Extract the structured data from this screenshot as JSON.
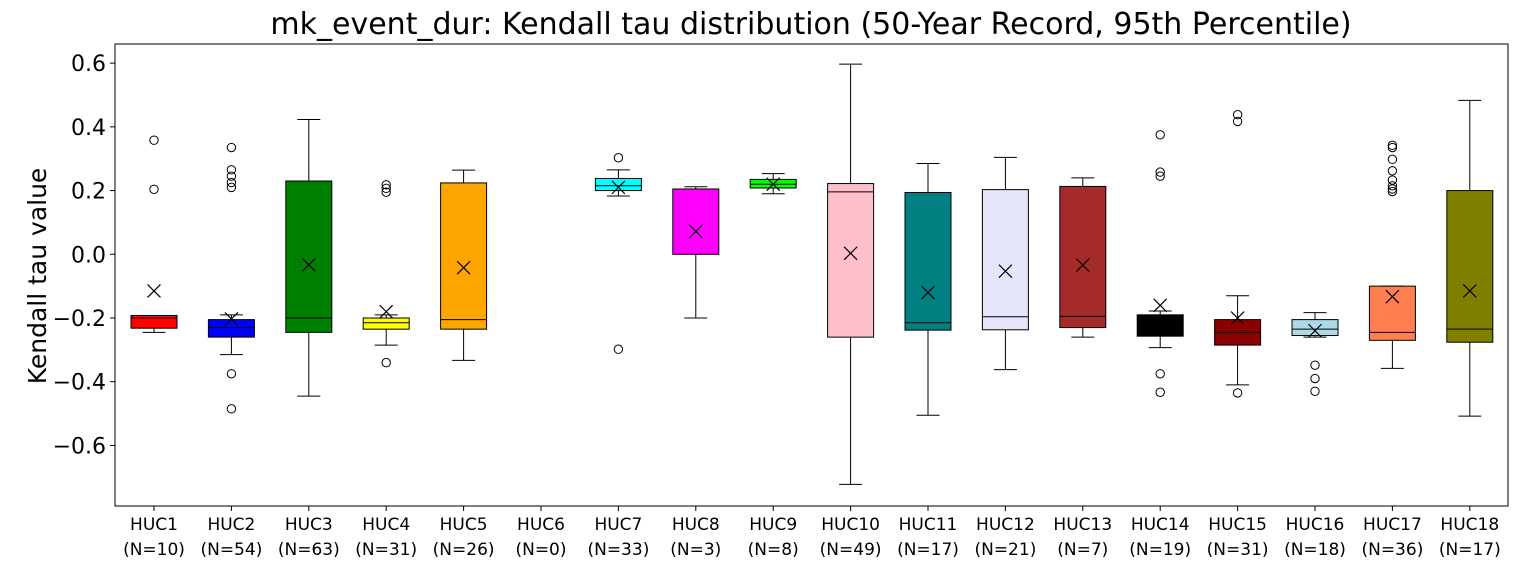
{
  "chart_data": {
    "type": "box",
    "title": "mk_event_dur: Kendall tau distribution (50-Year Record, 95th Percentile)",
    "ylabel": "Kendall tau value",
    "xlabel": "",
    "ylim": [
      -0.79,
      0.66
    ],
    "yticks": [
      -0.6,
      -0.4,
      -0.2,
      0.0,
      0.2,
      0.4,
      0.6
    ],
    "ytick_labels": [
      "−0.6",
      "−0.4",
      "−0.2",
      "0.0",
      "0.2",
      "0.4",
      "0.6"
    ],
    "grid": false,
    "mean_marker": "x",
    "outlier_marker": "open-circle",
    "groups": [
      {
        "label": "HUC1",
        "n_label": "(N=10)",
        "color": "#ff0000",
        "whisker_low": -0.245,
        "q1": -0.232,
        "median": -0.2,
        "q3": -0.192,
        "whisker_high": -0.192,
        "mean": -0.115,
        "outliers": [
          0.358,
          0.204
        ]
      },
      {
        "label": "HUC2",
        "n_label": "(N=54)",
        "color": "#0000ff",
        "whisker_low": -0.315,
        "q1": -0.26,
        "median": -0.23,
        "q3": -0.205,
        "whisker_high": -0.19,
        "mean": -0.203,
        "outliers": [
          0.335,
          0.265,
          0.245,
          0.225,
          0.21,
          -0.375,
          -0.485
        ]
      },
      {
        "label": "HUC3",
        "n_label": "(N=63)",
        "color": "#008000",
        "whisker_low": -0.445,
        "q1": -0.245,
        "median": -0.2,
        "q3": 0.23,
        "whisker_high": 0.423,
        "mean": -0.033,
        "outliers": []
      },
      {
        "label": "HUC4",
        "n_label": "(N=31)",
        "color": "#ffff00",
        "whisker_low": -0.285,
        "q1": -0.235,
        "median": -0.215,
        "q3": -0.2,
        "whisker_high": -0.19,
        "mean": -0.18,
        "outliers": [
          0.218,
          0.207,
          0.195,
          -0.34
        ]
      },
      {
        "label": "HUC5",
        "n_label": "(N=26)",
        "color": "#ffa500",
        "whisker_low": -0.333,
        "q1": -0.235,
        "median": -0.205,
        "q3": 0.224,
        "whisker_high": 0.264,
        "mean": -0.042,
        "outliers": []
      },
      {
        "label": "HUC6",
        "n_label": "(N=0)",
        "color": "#ffffff",
        "empty": true
      },
      {
        "label": "HUC7",
        "n_label": "(N=33)",
        "color": "#00ffff",
        "whisker_low": 0.183,
        "q1": 0.2,
        "median": 0.215,
        "q3": 0.238,
        "whisker_high": 0.265,
        "mean": 0.21,
        "outliers": [
          0.303,
          -0.298
        ]
      },
      {
        "label": "HUC8",
        "n_label": "(N=3)",
        "color": "#ff00ff",
        "whisker_low": -0.2,
        "q1": 0.0,
        "median": 0.205,
        "q3": 0.205,
        "whisker_high": 0.212,
        "mean": 0.072,
        "outliers": []
      },
      {
        "label": "HUC9",
        "n_label": "(N=8)",
        "color": "#00ff00",
        "whisker_low": 0.19,
        "q1": 0.208,
        "median": 0.22,
        "q3": 0.235,
        "whisker_high": 0.253,
        "mean": 0.22,
        "outliers": []
      },
      {
        "label": "HUC10",
        "n_label": "(N=49)",
        "color": "#ffc0cb",
        "whisker_low": -0.722,
        "q1": -0.26,
        "median": 0.196,
        "q3": 0.222,
        "whisker_high": 0.597,
        "mean": 0.003,
        "outliers": []
      },
      {
        "label": "HUC11",
        "n_label": "(N=17)",
        "color": "#008080",
        "whisker_low": -0.505,
        "q1": -0.238,
        "median": -0.215,
        "q3": 0.194,
        "whisker_high": 0.285,
        "mean": -0.12,
        "outliers": []
      },
      {
        "label": "HUC12",
        "n_label": "(N=21)",
        "color": "#e6e6fa",
        "whisker_low": -0.362,
        "q1": -0.237,
        "median": -0.196,
        "q3": 0.203,
        "whisker_high": 0.304,
        "mean": -0.053,
        "outliers": []
      },
      {
        "label": "HUC13",
        "n_label": "(N=7)",
        "color": "#a52a2a",
        "whisker_low": -0.26,
        "q1": -0.23,
        "median": -0.195,
        "q3": 0.213,
        "whisker_high": 0.24,
        "mean": -0.034,
        "outliers": []
      },
      {
        "label": "HUC14",
        "n_label": "(N=19)",
        "color": "#000000",
        "whisker_low": -0.293,
        "q1": -0.257,
        "median": -0.25,
        "q3": -0.19,
        "whisker_high": -0.178,
        "mean": -0.16,
        "outliers": [
          0.375,
          0.258,
          0.245,
          -0.375,
          -0.433
        ]
      },
      {
        "label": "HUC15",
        "n_label": "(N=31)",
        "color": "#8b0000",
        "whisker_low": -0.41,
        "q1": -0.285,
        "median": -0.245,
        "q3": -0.205,
        "whisker_high": -0.13,
        "mean": -0.2,
        "outliers": [
          0.438,
          0.417,
          -0.435
        ]
      },
      {
        "label": "HUC16",
        "n_label": "(N=18)",
        "color": "#add8e6",
        "whisker_low": -0.26,
        "q1": -0.255,
        "median": -0.235,
        "q3": -0.205,
        "whisker_high": -0.183,
        "mean": -0.24,
        "outliers": [
          -0.348,
          -0.39,
          -0.43
        ]
      },
      {
        "label": "HUC17",
        "n_label": "(N=36)",
        "color": "#ff7f50",
        "whisker_low": -0.358,
        "q1": -0.27,
        "median": -0.245,
        "q3": -0.1,
        "whisker_high": -0.1,
        "mean": -0.133,
        "outliers": [
          0.342,
          0.335,
          0.298,
          0.262,
          0.233,
          0.215,
          0.205,
          0.197
        ]
      },
      {
        "label": "HUC18",
        "n_label": "(N=17)",
        "color": "#808000",
        "whisker_low": -0.508,
        "q1": -0.276,
        "median": -0.235,
        "q3": 0.2,
        "whisker_high": 0.483,
        "mean": -0.115,
        "outliers": []
      }
    ]
  }
}
